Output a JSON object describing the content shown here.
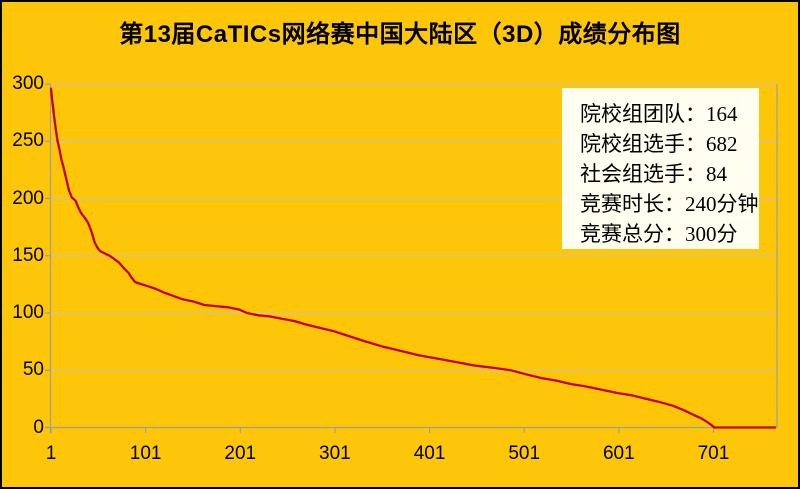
{
  "title": "第13届CaTICs网络赛中国大陆区（3D）成绩分布图",
  "colors": {
    "background": "#FDC608",
    "line": "#C70008",
    "grid": "#C2C2C2",
    "axis": "#9E9E9E",
    "legend_background": "#FFFEF0",
    "text": "#000000",
    "frame_border": "#000000"
  },
  "chart_data": {
    "type": "line",
    "title": "第13届CaTICs网络赛中国大陆区（3D）成绩分布图",
    "xlabel": "",
    "ylabel": "",
    "xlim": [
      1,
      766
    ],
    "ylim": [
      0,
      300
    ],
    "xticks": [
      1,
      101,
      201,
      301,
      401,
      501,
      601,
      701
    ],
    "yticks": [
      0,
      50,
      100,
      150,
      200,
      250,
      300
    ],
    "grid": true,
    "legend_position": "top-right",
    "legend_lines": [
      "院校组团队：164",
      "院校组选手：682",
      "社会组选手：84",
      "竞赛时长：240分钟",
      "竞赛总分：300分"
    ],
    "stats": [
      {
        "label": "院校组团队",
        "value": "164"
      },
      {
        "label": "院校组选手",
        "value": "682"
      },
      {
        "label": "社会组选手",
        "value": "84"
      },
      {
        "label": "竞赛时长",
        "value": "240分钟"
      },
      {
        "label": "竞赛总分",
        "value": "300分"
      }
    ],
    "series": [
      {
        "name": "成绩",
        "color": "#C70008",
        "points": [
          [
            1,
            296
          ],
          [
            2,
            288
          ],
          [
            3,
            281
          ],
          [
            4,
            274
          ],
          [
            5,
            267
          ],
          [
            6,
            261
          ],
          [
            7,
            255
          ],
          [
            8,
            250
          ],
          [
            10,
            243
          ],
          [
            12,
            234
          ],
          [
            14,
            228
          ],
          [
            16,
            221
          ],
          [
            18,
            214
          ],
          [
            20,
            207
          ],
          [
            23,
            201
          ],
          [
            27,
            198
          ],
          [
            30,
            192
          ],
          [
            33,
            187
          ],
          [
            36,
            184
          ],
          [
            40,
            179
          ],
          [
            43,
            173
          ],
          [
            45,
            168
          ],
          [
            47,
            162
          ],
          [
            50,
            157
          ],
          [
            53,
            154
          ],
          [
            58,
            152
          ],
          [
            63,
            150
          ],
          [
            68,
            147
          ],
          [
            73,
            144
          ],
          [
            78,
            139
          ],
          [
            83,
            135
          ],
          [
            86,
            131
          ],
          [
            90,
            127
          ],
          [
            97,
            125
          ],
          [
            105,
            123
          ],
          [
            112,
            121
          ],
          [
            120,
            118
          ],
          [
            130,
            115
          ],
          [
            140,
            112
          ],
          [
            152,
            110
          ],
          [
            163,
            107
          ],
          [
            175,
            106
          ],
          [
            188,
            105
          ],
          [
            200,
            103
          ],
          [
            208,
            100
          ],
          [
            220,
            98
          ],
          [
            232,
            97
          ],
          [
            245,
            95
          ],
          [
            258,
            93
          ],
          [
            270,
            90
          ],
          [
            285,
            87
          ],
          [
            300,
            84
          ],
          [
            315,
            80
          ],
          [
            330,
            76
          ],
          [
            350,
            71
          ],
          [
            370,
            67
          ],
          [
            390,
            63
          ],
          [
            410,
            60
          ],
          [
            430,
            57
          ],
          [
            450,
            54
          ],
          [
            470,
            52
          ],
          [
            487,
            50
          ],
          [
            505,
            46
          ],
          [
            520,
            43
          ],
          [
            535,
            41
          ],
          [
            550,
            38
          ],
          [
            565,
            36
          ],
          [
            583,
            33
          ],
          [
            600,
            30
          ],
          [
            615,
            28
          ],
          [
            630,
            25
          ],
          [
            645,
            22
          ],
          [
            658,
            19
          ],
          [
            670,
            15
          ],
          [
            680,
            11
          ],
          [
            688,
            8
          ],
          [
            694,
            5
          ],
          [
            699,
            2
          ],
          [
            702,
            0
          ],
          [
            766,
            0
          ]
        ]
      }
    ]
  }
}
